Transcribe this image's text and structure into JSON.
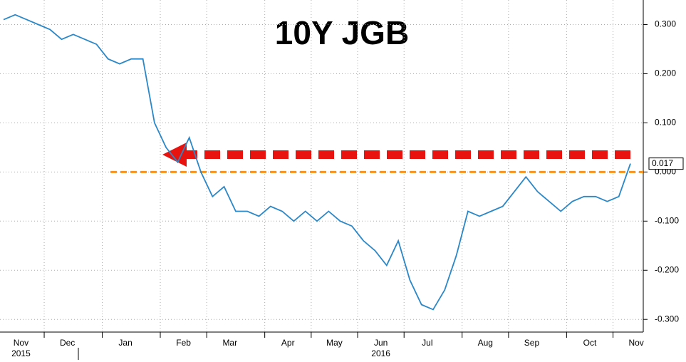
{
  "chart_data": {
    "type": "line",
    "title": "10Y JGB",
    "categories": [
      "Nov",
      null,
      null,
      null,
      "Dec",
      null,
      null,
      null,
      null,
      "Jan",
      null,
      null,
      null,
      null,
      "Feb",
      null,
      null,
      null,
      "Mar",
      null,
      null,
      null,
      null,
      "Apr",
      null,
      null,
      null,
      "May",
      null,
      null,
      null,
      "Jun",
      null,
      null,
      null,
      "Jul",
      null,
      null,
      null,
      null,
      "Aug",
      null,
      null,
      null,
      "Sep",
      null,
      null,
      null,
      null,
      "Oct",
      null,
      null,
      null,
      "Nov",
      null
    ],
    "year_labels": [
      "2015",
      "2016"
    ],
    "series": [
      {
        "name": "10Y JGB",
        "color": "#2a87c8",
        "values": [
          0.31,
          0.32,
          0.31,
          0.3,
          0.29,
          0.27,
          0.28,
          0.27,
          0.26,
          0.23,
          0.22,
          0.23,
          0.23,
          0.1,
          0.05,
          0.02,
          0.07,
          0.0,
          -0.05,
          -0.03,
          -0.08,
          -0.08,
          -0.09,
          -0.07,
          -0.08,
          -0.1,
          -0.08,
          -0.1,
          -0.08,
          -0.1,
          -0.11,
          -0.14,
          -0.16,
          -0.19,
          -0.14,
          -0.22,
          -0.27,
          -0.28,
          -0.24,
          -0.17,
          -0.08,
          -0.09,
          -0.08,
          -0.07,
          -0.04,
          -0.01,
          -0.04,
          -0.06,
          -0.08,
          -0.06,
          -0.05,
          -0.05,
          -0.06,
          -0.05,
          0.017
        ]
      }
    ],
    "reference_line": 0,
    "ylim": [
      -0.32,
      0.35
    ],
    "yticks": [
      {
        "value": 0.3,
        "label": "0.300"
      },
      {
        "value": 0.2,
        "label": "0.200"
      },
      {
        "value": 0.1,
        "label": "0.100"
      },
      {
        "value": 0,
        "label": "0.000"
      },
      {
        "value": -0.1,
        "label": "-0.100"
      },
      {
        "value": -0.2,
        "label": "-0.200"
      },
      {
        "value": -0.3,
        "label": "-0.300"
      }
    ],
    "grid": true
  }
}
